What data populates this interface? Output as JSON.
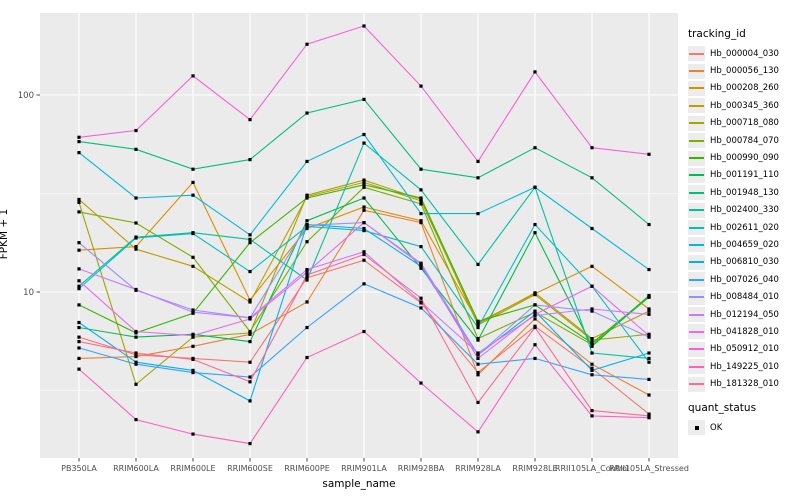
{
  "figure": {
    "background": "#FFFFFF",
    "panel_background": "#EBEBEB",
    "gridline_color": "#FFFFFF",
    "axis_text_color": "#4D4D4D",
    "tick_mark_color": "#333333",
    "marker_color": "#000000"
  },
  "legend": {
    "tracking_title": "tracking_id",
    "quant_title": "quant_status",
    "quant_items": [
      {
        "label": "OK",
        "marker": "square",
        "color": "#000000"
      }
    ]
  },
  "chart_data": {
    "type": "line",
    "title": "",
    "xlabel": "sample_name",
    "ylabel": "FPKM + 1",
    "y_scale": "log10",
    "y_ticks": [
      10,
      100
    ],
    "y_minor_breaks": [
      3.1623,
      31.623
    ],
    "ylim": [
      1.44,
      261
    ],
    "grid": true,
    "legend_position": "right",
    "marker": "square",
    "categories": [
      "PB350LA",
      "RRIM600LA",
      "RRIM600LE",
      "RRIM600SE",
      "RRIM600PE",
      "RRIM901LA",
      "RRIM928BA",
      "RRIM928LA",
      "RRIM928LE",
      "RRII105LA_Control",
      "RRII105LA_Stressed"
    ],
    "series": [
      {
        "name": "Hb_000004_030",
        "color": "#F8766D",
        "values": [
          5.9,
          4.8,
          4.6,
          4.4,
          11.8,
          14.5,
          8.8,
          3.9,
          6.7,
          4.1,
          2.4
        ]
      },
      {
        "name": "Hb_000056_130",
        "color": "#EA8331",
        "values": [
          4.6,
          4.7,
          5.3,
          6.1,
          8.9,
          26,
          22.5,
          3.8,
          7.3,
          4.3,
          3.0
        ]
      },
      {
        "name": "Hb_000208_260",
        "color": "#D89000",
        "values": [
          16.3,
          17,
          36,
          9.1,
          21,
          27,
          23,
          7.0,
          9.8,
          13.5,
          8.2
        ]
      },
      {
        "name": "Hb_000345_360",
        "color": "#C09B00",
        "values": [
          29.5,
          16.5,
          13.5,
          8.9,
          30.5,
          36,
          29,
          6.9,
          9.9,
          5.8,
          8.0
        ]
      },
      {
        "name": "Hb_000718_080",
        "color": "#A3A500",
        "values": [
          28.5,
          3.4,
          5.9,
          6.2,
          31,
          37,
          29.5,
          6.8,
          9.7,
          5.7,
          6.1
        ]
      },
      {
        "name": "Hb_000784_070",
        "color": "#7CAE00",
        "values": [
          25.5,
          22.4,
          15,
          6.3,
          18,
          34,
          28,
          5.8,
          7.9,
          5.4,
          9.4
        ]
      },
      {
        "name": "Hb_000990_090",
        "color": "#39B600",
        "values": [
          8.6,
          6.2,
          7.8,
          17.8,
          30,
          35,
          30,
          7.1,
          8.6,
          5.5,
          9.5
        ]
      },
      {
        "name": "Hb_001191_110",
        "color": "#00BB4E",
        "values": [
          6.6,
          5.9,
          6.1,
          5.6,
          23,
          30,
          13.2,
          5.7,
          20,
          5.3,
          9.6
        ]
      },
      {
        "name": "Hb_001948_130",
        "color": "#00BF7D",
        "values": [
          58,
          53,
          42,
          47,
          81,
          95,
          42,
          38,
          54,
          38,
          22
        ]
      },
      {
        "name": "Hb_002400_330",
        "color": "#00C1A3",
        "values": [
          10.7,
          19,
          20,
          18.5,
          11.5,
          57,
          33,
          13.8,
          34,
          4.9,
          4.6
        ]
      },
      {
        "name": "Hb_002611_020",
        "color": "#00BFC4",
        "values": [
          10.4,
          18.8,
          19.8,
          12.7,
          21.5,
          20.5,
          17,
          6.6,
          22,
          10.7,
          4.4
        ]
      },
      {
        "name": "Hb_004659_020",
        "color": "#00BAE0",
        "values": [
          51,
          30,
          31,
          19.5,
          46,
          63,
          25,
          25,
          34,
          21,
          13
        ]
      },
      {
        "name": "Hb_006810_030",
        "color": "#00B0F6",
        "values": [
          7.0,
          4.4,
          4.0,
          2.8,
          22,
          21,
          13.5,
          4.8,
          8.0,
          4.0,
          4.9
        ]
      },
      {
        "name": "Hb_007026_040",
        "color": "#35A2FF",
        "values": [
          5.2,
          4.3,
          3.9,
          3.7,
          6.6,
          11.0,
          8.3,
          4.3,
          4.6,
          3.8,
          3.6
        ]
      },
      {
        "name": "Hb_008484_010",
        "color": "#9590FF",
        "values": [
          17.8,
          10.2,
          8.1,
          7.4,
          21.8,
          22.5,
          14,
          4.8,
          8.6,
          8.0,
          5.9
        ]
      },
      {
        "name": "Hb_012194_050",
        "color": "#C77CFF",
        "values": [
          13.1,
          10.3,
          7.9,
          7.4,
          13.0,
          16.0,
          8.9,
          4.9,
          7.6,
          8.2,
          7.7
        ]
      },
      {
        "name": "Hb_041828_010",
        "color": "#E76BF3",
        "values": [
          11.4,
          6.3,
          6.0,
          7.3,
          12.6,
          22.5,
          13.8,
          4.6,
          7.7,
          10.7,
          6.0
        ]
      },
      {
        "name": "Hb_050912_010",
        "color": "#FA62DB",
        "values": [
          61,
          66,
          125,
          75,
          181,
          224,
          111,
          46,
          131,
          54,
          50
        ]
      },
      {
        "name": "Hb_149225_010",
        "color": "#FF62BC",
        "values": [
          4.06,
          2.25,
          1.9,
          1.7,
          4.65,
          6.3,
          3.45,
          1.95,
          5.4,
          2.35,
          2.3
        ]
      },
      {
        "name": "Hb_181328_010",
        "color": "#FF6A98",
        "values": [
          5.6,
          4.9,
          4.55,
          3.5,
          12.2,
          15.5,
          9.3,
          2.75,
          6.6,
          2.5,
          2.35
        ]
      }
    ]
  }
}
